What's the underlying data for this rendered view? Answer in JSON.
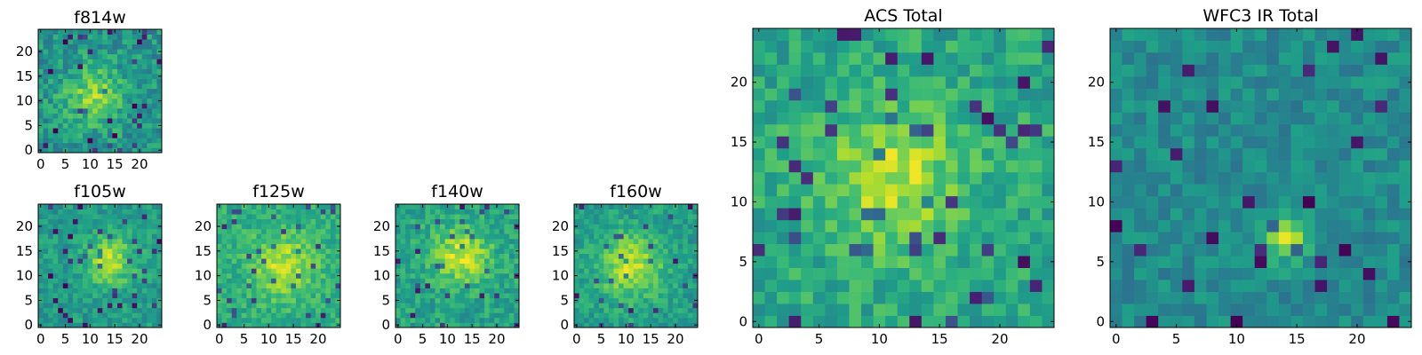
{
  "chart_data": [
    {
      "type": "heatmap",
      "title": "f814w",
      "xlabel": "",
      "ylabel": "",
      "xlim": [
        0,
        24
      ],
      "ylim": [
        0,
        24
      ],
      "xticks": [
        "0",
        "5",
        "10",
        "15",
        "20"
      ],
      "yticks": [
        "0",
        "5",
        "10",
        "15",
        "20"
      ],
      "grid_size": 25,
      "colormap": "viridis",
      "pattern": {
        "center": [
          11,
          11
        ],
        "sigma": 4,
        "peak": 0.82,
        "base": 0.52,
        "noise": 0.3,
        "seed": 11
      }
    },
    {
      "type": "heatmap",
      "title": "f105w",
      "xlabel": "",
      "ylabel": "",
      "xlim": [
        0,
        24
      ],
      "ylim": [
        0,
        24
      ],
      "xticks": [
        "0",
        "5",
        "10",
        "15",
        "20"
      ],
      "yticks": [
        "0",
        "5",
        "10",
        "15",
        "20"
      ],
      "grid_size": 25,
      "colormap": "viridis",
      "pattern": {
        "center": [
          14,
          13
        ],
        "sigma": 3.5,
        "peak": 0.88,
        "base": 0.55,
        "noise": 0.22,
        "seed": 23
      }
    },
    {
      "type": "heatmap",
      "title": "f125w",
      "xlabel": "",
      "ylabel": "",
      "xlim": [
        0,
        24
      ],
      "ylim": [
        0,
        24
      ],
      "xticks": [
        "0",
        "5",
        "10",
        "15",
        "20"
      ],
      "yticks": [
        "0",
        "5",
        "10",
        "15",
        "20"
      ],
      "grid_size": 25,
      "colormap": "viridis",
      "pattern": {
        "center": [
          13,
          12
        ],
        "sigma": 4.5,
        "peak": 0.9,
        "base": 0.62,
        "noise": 0.22,
        "seed": 37
      }
    },
    {
      "type": "heatmap",
      "title": "f140w",
      "xlabel": "",
      "ylabel": "",
      "xlim": [
        0,
        24
      ],
      "ylim": [
        0,
        24
      ],
      "xticks": [
        "0",
        "5",
        "10",
        "15",
        "20"
      ],
      "yticks": [
        "0",
        "5",
        "10",
        "15",
        "20"
      ],
      "grid_size": 25,
      "colormap": "viridis",
      "pattern": {
        "center": [
          13,
          14
        ],
        "sigma": 4,
        "peak": 0.92,
        "base": 0.58,
        "noise": 0.24,
        "seed": 41
      }
    },
    {
      "type": "heatmap",
      "title": "f160w",
      "xlabel": "",
      "ylabel": "",
      "xlim": [
        0,
        24
      ],
      "ylim": [
        0,
        24
      ],
      "xticks": [
        "0",
        "5",
        "10",
        "15",
        "20"
      ],
      "yticks": [
        "0",
        "5",
        "10",
        "15",
        "20"
      ],
      "grid_size": 25,
      "colormap": "viridis",
      "pattern": {
        "center": [
          11,
          12
        ],
        "sigma": 4.5,
        "peak": 0.9,
        "base": 0.56,
        "noise": 0.22,
        "seed": 53
      }
    },
    {
      "type": "heatmap",
      "title": "ACS Total",
      "xlabel": "",
      "ylabel": "",
      "xlim": [
        0,
        24
      ],
      "ylim": [
        0,
        24
      ],
      "xticks": [
        "0",
        "5",
        "10",
        "15",
        "20"
      ],
      "yticks": [
        "0",
        "5",
        "10",
        "15",
        "20"
      ],
      "grid_size": 25,
      "colormap": "viridis",
      "pattern": {
        "center": [
          11,
          12
        ],
        "sigma": 4,
        "peak": 0.9,
        "base": 0.6,
        "noise": 0.25,
        "seed": 67
      }
    },
    {
      "type": "heatmap",
      "title": "WFC3 IR Total",
      "xlabel": "",
      "ylabel": "",
      "xlim": [
        0,
        24
      ],
      "ylim": [
        0,
        24
      ],
      "xticks": [
        "0",
        "5",
        "10",
        "15",
        "20"
      ],
      "yticks": [
        "0",
        "5",
        "10",
        "15",
        "20"
      ],
      "grid_size": 25,
      "colormap": "viridis",
      "pattern": {
        "center": [
          14,
          7
        ],
        "sigma": 1.2,
        "peak": 0.95,
        "base": 0.48,
        "noise": 0.2,
        "seed": 79
      }
    }
  ]
}
